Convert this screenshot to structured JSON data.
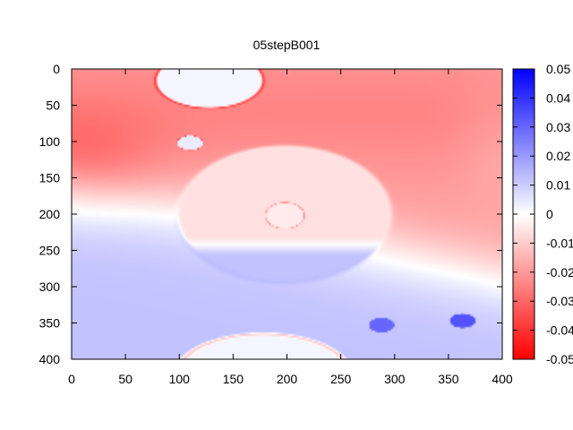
{
  "chart_data": {
    "type": "heatmap",
    "title": "05stepB001",
    "xlabel": "",
    "ylabel": "",
    "xlim": [
      0,
      400
    ],
    "ylim": [
      0,
      400
    ],
    "y_axis_inverted": true,
    "x_ticks": [
      "0",
      "50",
      "100",
      "150",
      "200",
      "250",
      "300",
      "350",
      "400"
    ],
    "y_ticks": [
      "0",
      "50",
      "100",
      "150",
      "200",
      "250",
      "300",
      "350",
      "400"
    ],
    "colorbar": {
      "min": -0.05,
      "max": 0.05,
      "ticks": [
        {
          "value": 0.05,
          "label": "0.05"
        },
        {
          "value": 0.04,
          "label": "0.04"
        },
        {
          "value": 0.03,
          "label": "0.03"
        },
        {
          "value": 0.02,
          "label": "0.02"
        },
        {
          "value": 0.01,
          "label": "0.01"
        },
        {
          "value": 0,
          "label": "0"
        },
        {
          "value": -0.01,
          "label": "-0.01"
        },
        {
          "value": -0.02,
          "label": "-0.02"
        },
        {
          "value": -0.03,
          "label": "-0.03"
        },
        {
          "value": -0.04,
          "label": "-0.04"
        },
        {
          "value": -0.05,
          "label": "-0.05"
        }
      ],
      "colors": {
        "low": "#ff0000",
        "mid": "#ffffff",
        "high": "#0000ff"
      }
    },
    "features": [
      {
        "shape": "ellipse",
        "cx": 128,
        "cy": 16,
        "rx": 50,
        "ry": 38,
        "value": 0.002,
        "rim": -0.02
      },
      {
        "shape": "ellipse",
        "cx": 110,
        "cy": 102,
        "rx": 12,
        "ry": 10,
        "value": 0.004,
        "rim": -0.02
      },
      {
        "shape": "ellipse",
        "cx": 198,
        "cy": 200,
        "rx": 100,
        "ry": 95,
        "value": -0.006,
        "lower_value": 0.012,
        "split_y": 240,
        "rim": 0.002
      },
      {
        "shape": "ellipse",
        "cx": 198,
        "cy": 202,
        "rx": 18,
        "ry": 18,
        "value": -0.004,
        "rim": -0.018
      },
      {
        "shape": "ellipse",
        "cx": 288,
        "cy": 353,
        "rx": 12,
        "ry": 10,
        "value": 0.03
      },
      {
        "shape": "ellipse",
        "cx": 363,
        "cy": 347,
        "rx": 12,
        "ry": 10,
        "value": 0.034
      },
      {
        "shape": "ellipse",
        "cx": 178,
        "cy": 420,
        "rx": 80,
        "ry": 55,
        "value": 0.002,
        "rim": -0.02
      }
    ]
  }
}
